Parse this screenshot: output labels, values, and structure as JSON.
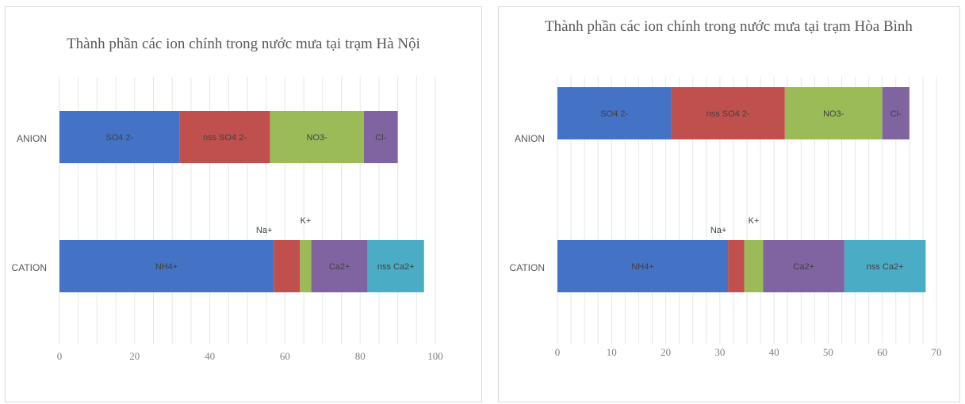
{
  "chart_data": [
    {
      "type": "bar",
      "orientation": "horizontal",
      "stacked": true,
      "title": "Thành phần các ion chính trong nước mưa tại trạm Hà Nội",
      "xlim": [
        0,
        100
      ],
      "xticks": [
        "0",
        "20",
        "40",
        "60",
        "80",
        "100"
      ],
      "grid": true,
      "legend": "none",
      "rows": [
        {
          "category": "ANION",
          "segments": [
            {
              "label": "SO4 2-",
              "value": 32,
              "color": "#4472c4"
            },
            {
              "label": "nss SO4 2-",
              "value": 24,
              "color": "#c0504d"
            },
            {
              "label": "NO3-",
              "value": 25,
              "color": "#9bbb59"
            },
            {
              "label": "Cl-",
              "value": 9,
              "color": "#8064a2"
            }
          ]
        },
        {
          "category": "CATION",
          "segments": [
            {
              "label": "NH4+",
              "value": 57,
              "color": "#4472c4"
            },
            {
              "label": "Na+",
              "value": 7,
              "color": "#c0504d"
            },
            {
              "label": "K+",
              "value": 3,
              "color": "#9bbb59"
            },
            {
              "label": "Ca2+",
              "value": 15,
              "color": "#8064a2"
            },
            {
              "label": "nss Ca2+",
              "value": 15,
              "color": "#4bacc6"
            }
          ]
        }
      ]
    },
    {
      "type": "bar",
      "orientation": "horizontal",
      "stacked": true,
      "title": "Thành phần các ion chính trong nước mưa tại trạm Hòa Bình",
      "xlim": [
        0,
        70
      ],
      "xticks": [
        "0",
        "10",
        "20",
        "30",
        "40",
        "50",
        "60",
        "70"
      ],
      "grid": true,
      "legend": "none",
      "rows": [
        {
          "category": "ANION",
          "segments": [
            {
              "label": "SO4 2-",
              "value": 21,
              "color": "#4472c4"
            },
            {
              "label": "nss SO4 2-",
              "value": 21,
              "color": "#c0504d"
            },
            {
              "label": "NO3-",
              "value": 18,
              "color": "#9bbb59"
            },
            {
              "label": "Cl-",
              "value": 5,
              "color": "#8064a2"
            }
          ]
        },
        {
          "category": "CATION",
          "segments": [
            {
              "label": "NH4+",
              "value": 31.5,
              "color": "#4472c4"
            },
            {
              "label": "Na+",
              "value": 3,
              "color": "#c0504d"
            },
            {
              "label": "K+",
              "value": 3.5,
              "color": "#9bbb59"
            },
            {
              "label": "Ca2+",
              "value": 15,
              "color": "#8064a2"
            },
            {
              "label": "nss Ca2+",
              "value": 15,
              "color": "#4bacc6"
            }
          ]
        }
      ]
    }
  ]
}
